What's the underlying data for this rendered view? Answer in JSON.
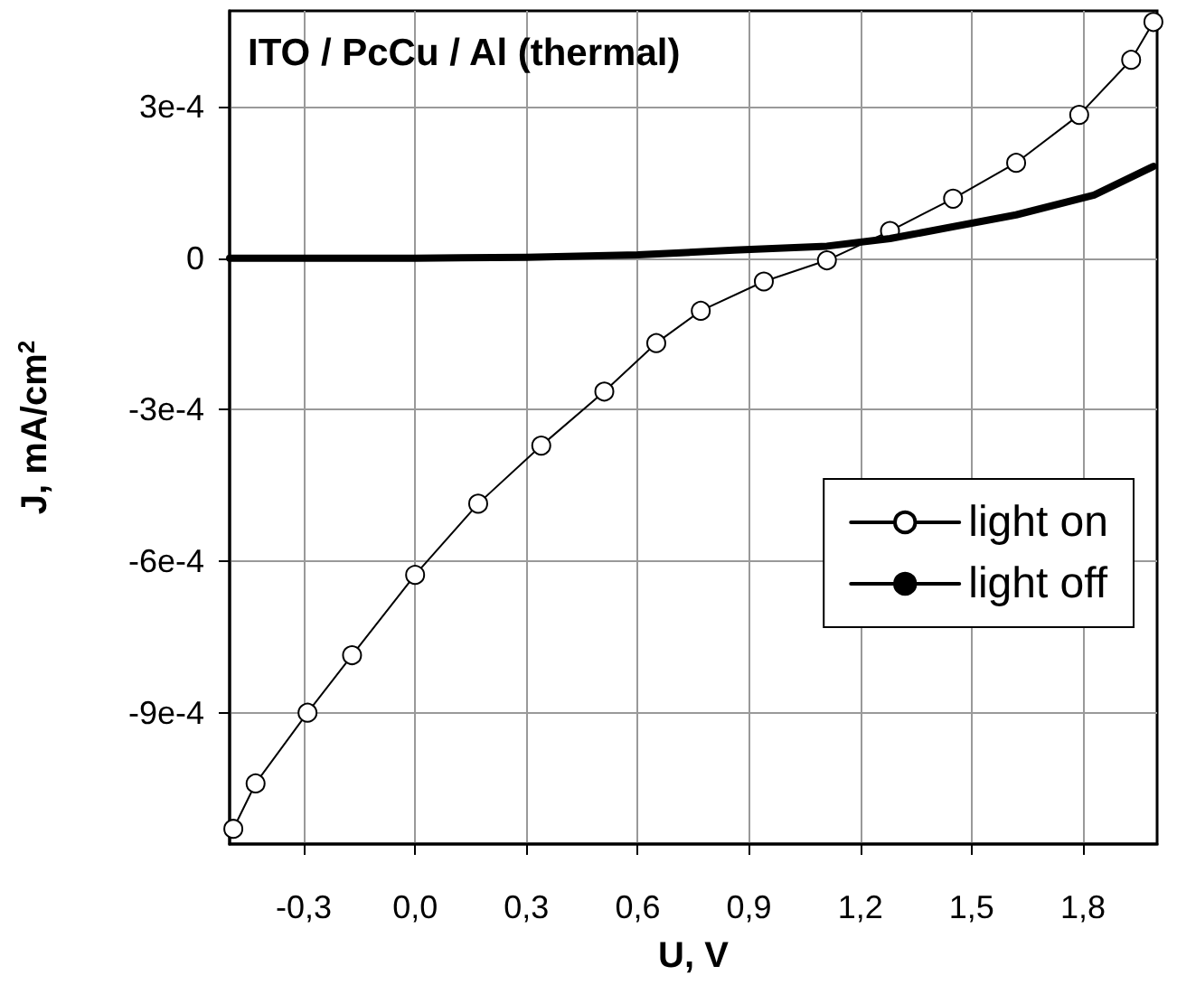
{
  "chart_data": {
    "type": "line",
    "title": "ITO / PcCu / Al (thermal)",
    "xlabel": "U, V",
    "ylabel": "J, mA/cm$^{2}$",
    "xlim": [
      -0.5,
      2.0
    ],
    "xticks": [
      {
        "value": -0.3,
        "label": "-0,3"
      },
      {
        "value": 0.0,
        "label": "0,0"
      },
      {
        "value": 0.3,
        "label": "0,3"
      },
      {
        "value": 0.6,
        "label": "0,6"
      },
      {
        "value": 0.9,
        "label": "0,9"
      },
      {
        "value": 1.2,
        "label": "1,2"
      },
      {
        "value": 1.5,
        "label": "1,5"
      },
      {
        "value": 1.8,
        "label": "1,8"
      }
    ],
    "ylim": [
      -0.00116,
      0.00049
    ],
    "yticks": [
      {
        "value": -0.0009,
        "label": "-9e-4"
      },
      {
        "value": -0.0006,
        "label": "-6e-4"
      },
      {
        "value": -0.0003,
        "label": "-3e-4"
      },
      0,
      {
        "value": 0.0003,
        "label": "3e-4"
      }
    ],
    "grid": true,
    "legend": "right",
    "line_style": "solid",
    "series": [
      {
        "name": "light on",
        "color": "#000000",
        "marker": "circle",
        "x": [
          -0.49,
          -0.43,
          -0.29,
          -0.17,
          0.0,
          0.17,
          0.34,
          0.51,
          0.65,
          0.77,
          0.94,
          1.11,
          1.28,
          1.45,
          1.62,
          1.79,
          1.93,
          1.99
        ],
        "values": [
          -0.00113,
          -0.00104,
          -0.0009,
          -0.000786,
          -0.000627,
          -0.000486,
          -0.000371,
          -0.000264,
          -0.000168,
          -0.000104,
          -4.6e-05,
          -4e-06,
          5.4e-05,
          0.000118,
          0.000189,
          0.000284,
          0.000393,
          0.000468
        ]
      },
      {
        "name": "light off",
        "color": "#000000",
        "marker": "none",
        "x": [
          -0.5,
          0.0,
          0.3,
          0.6,
          0.86,
          1.11,
          1.28,
          1.62,
          1.83,
          1.99
        ],
        "values": [
          0,
          0,
          2e-06,
          7e-06,
          1.6e-05,
          2.4e-05,
          3.9e-05,
          8.6e-05,
          0.000125,
          0.000182
        ]
      }
    ]
  }
}
